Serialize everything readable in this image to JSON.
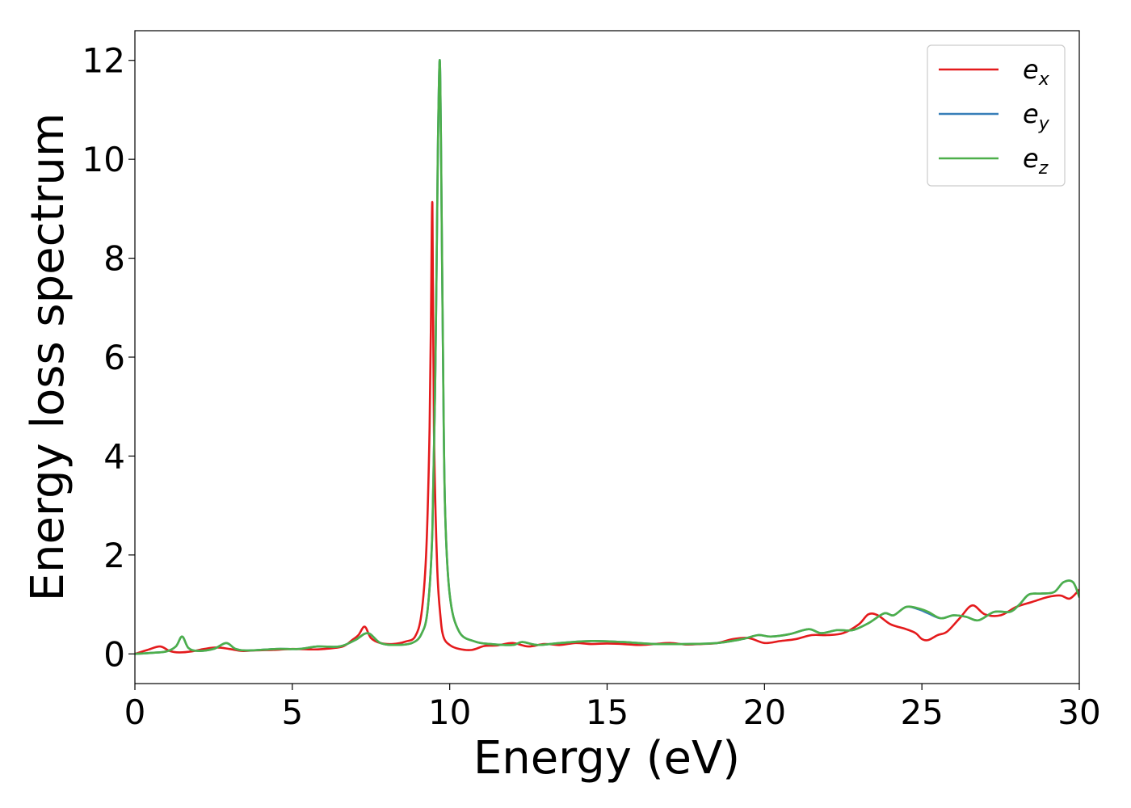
{
  "chart_data": {
    "type": "line",
    "title": "",
    "xlabel": "Energy (eV)",
    "ylabel": "Energy loss spectrum",
    "xlim": [
      0,
      30
    ],
    "ylim": [
      -0.6,
      12.6
    ],
    "xticks": [
      0,
      5,
      10,
      15,
      20,
      25,
      30
    ],
    "xtick_labels": [
      "0",
      "5",
      "10",
      "15",
      "20",
      "25",
      "30"
    ],
    "yticks": [
      0,
      2,
      4,
      6,
      8,
      10,
      12
    ],
    "ytick_labels": [
      "0",
      "2",
      "4",
      "6",
      "8",
      "10",
      "12"
    ],
    "grid": false,
    "legend_position": "top-right",
    "series": [
      {
        "name_base": "e",
        "name_sub": "x",
        "color": "#e41a1c",
        "x": [
          0,
          0.4,
          0.8,
          1.1,
          1.4,
          1.8,
          2.2,
          2.6,
          3.0,
          3.4,
          3.8,
          4.4,
          5.0,
          5.6,
          6.0,
          6.6,
          6.9,
          7.1,
          7.3,
          7.5,
          7.8,
          8.2,
          8.6,
          8.9,
          9.1,
          9.25,
          9.35,
          9.4,
          9.45,
          9.5,
          9.6,
          9.7,
          9.8,
          10.0,
          10.3,
          10.7,
          11.1,
          11.5,
          12.0,
          12.5,
          13.0,
          13.5,
          14.0,
          14.5,
          15.0,
          15.5,
          16.0,
          16.5,
          17.0,
          17.5,
          18.0,
          18.5,
          19.0,
          19.5,
          20.0,
          20.5,
          21.0,
          21.5,
          22.0,
          22.5,
          23.0,
          23.3,
          23.6,
          24.0,
          24.5,
          24.8,
          25.0,
          25.2,
          25.5,
          25.8,
          26.2,
          26.6,
          27.0,
          27.5,
          28.0,
          28.5,
          29.0,
          29.4,
          29.7,
          30.0
        ],
        "y": [
          0.0,
          0.08,
          0.15,
          0.06,
          0.03,
          0.05,
          0.1,
          0.13,
          0.1,
          0.06,
          0.07,
          0.08,
          0.1,
          0.09,
          0.1,
          0.15,
          0.28,
          0.38,
          0.55,
          0.32,
          0.22,
          0.2,
          0.25,
          0.35,
          0.8,
          2.0,
          4.2,
          6.5,
          9.1,
          4.5,
          1.8,
          0.8,
          0.35,
          0.18,
          0.1,
          0.08,
          0.16,
          0.17,
          0.22,
          0.15,
          0.2,
          0.18,
          0.22,
          0.2,
          0.21,
          0.2,
          0.18,
          0.2,
          0.22,
          0.19,
          0.2,
          0.22,
          0.3,
          0.32,
          0.22,
          0.26,
          0.3,
          0.38,
          0.38,
          0.42,
          0.6,
          0.8,
          0.78,
          0.6,
          0.5,
          0.42,
          0.3,
          0.28,
          0.38,
          0.45,
          0.72,
          0.98,
          0.8,
          0.78,
          0.95,
          1.05,
          1.15,
          1.18,
          1.12,
          1.3
        ]
      },
      {
        "name_base": "e",
        "name_sub": "y",
        "color": "#377eb8",
        "x": [
          0,
          0.5,
          1.0,
          1.3,
          1.5,
          1.7,
          2.0,
          2.5,
          2.9,
          3.2,
          3.6,
          4.5,
          5.2,
          5.8,
          6.5,
          7.0,
          7.4,
          7.8,
          8.3,
          8.8,
          9.1,
          9.3,
          9.45,
          9.55,
          9.62,
          9.68,
          9.72,
          9.78,
          9.85,
          10.0,
          10.3,
          10.8,
          11.3,
          12.0,
          12.3,
          12.8,
          13.5,
          14.5,
          15.5,
          16.5,
          17.5,
          18.5,
          19.3,
          19.8,
          20.2,
          20.8,
          21.4,
          21.8,
          22.3,
          22.8,
          23.3,
          23.8,
          24.1,
          24.5,
          24.9,
          25.2,
          25.6,
          26.0,
          26.4,
          26.8,
          27.3,
          27.8,
          28.1,
          28.4,
          28.8,
          29.2,
          29.5,
          29.8,
          30.0
        ],
        "y": [
          0.0,
          0.02,
          0.05,
          0.15,
          0.35,
          0.12,
          0.06,
          0.1,
          0.22,
          0.1,
          0.07,
          0.1,
          0.1,
          0.15,
          0.15,
          0.28,
          0.42,
          0.22,
          0.18,
          0.22,
          0.4,
          0.9,
          2.5,
          6.0,
          10.0,
          12.0,
          10.5,
          6.5,
          3.0,
          1.2,
          0.45,
          0.25,
          0.2,
          0.18,
          0.24,
          0.18,
          0.22,
          0.26,
          0.24,
          0.2,
          0.2,
          0.22,
          0.3,
          0.38,
          0.35,
          0.4,
          0.5,
          0.42,
          0.48,
          0.48,
          0.62,
          0.82,
          0.78,
          0.95,
          0.9,
          0.82,
          0.72,
          0.78,
          0.75,
          0.68,
          0.85,
          0.85,
          1.0,
          1.2,
          1.22,
          1.25,
          1.45,
          1.45,
          1.15
        ]
      },
      {
        "name_base": "e",
        "name_sub": "z",
        "color": "#4daf4a",
        "x": [
          0,
          0.5,
          1.0,
          1.3,
          1.5,
          1.7,
          2.0,
          2.5,
          2.9,
          3.2,
          3.6,
          4.5,
          5.2,
          5.8,
          6.5,
          7.0,
          7.4,
          7.8,
          8.3,
          8.8,
          9.1,
          9.3,
          9.45,
          9.55,
          9.62,
          9.68,
          9.72,
          9.78,
          9.85,
          10.0,
          10.3,
          10.8,
          11.3,
          12.0,
          12.3,
          12.8,
          13.5,
          14.5,
          15.5,
          16.5,
          17.5,
          18.5,
          19.3,
          19.8,
          20.2,
          20.8,
          21.4,
          21.8,
          22.3,
          22.8,
          23.3,
          23.8,
          24.1,
          24.5,
          24.9,
          25.2,
          25.6,
          26.0,
          26.4,
          26.8,
          27.3,
          27.8,
          28.1,
          28.4,
          28.8,
          29.2,
          29.5,
          29.8,
          30.0
        ],
        "y": [
          0.0,
          0.02,
          0.05,
          0.15,
          0.35,
          0.12,
          0.06,
          0.1,
          0.22,
          0.1,
          0.07,
          0.1,
          0.1,
          0.15,
          0.15,
          0.28,
          0.42,
          0.22,
          0.18,
          0.22,
          0.4,
          0.9,
          2.5,
          6.0,
          10.0,
          12.0,
          10.5,
          6.5,
          3.0,
          1.2,
          0.45,
          0.25,
          0.2,
          0.18,
          0.24,
          0.18,
          0.22,
          0.26,
          0.24,
          0.2,
          0.2,
          0.22,
          0.3,
          0.38,
          0.35,
          0.4,
          0.5,
          0.42,
          0.48,
          0.48,
          0.62,
          0.82,
          0.78,
          0.95,
          0.92,
          0.85,
          0.72,
          0.78,
          0.75,
          0.68,
          0.85,
          0.85,
          1.0,
          1.2,
          1.22,
          1.25,
          1.45,
          1.45,
          1.15
        ]
      }
    ]
  }
}
